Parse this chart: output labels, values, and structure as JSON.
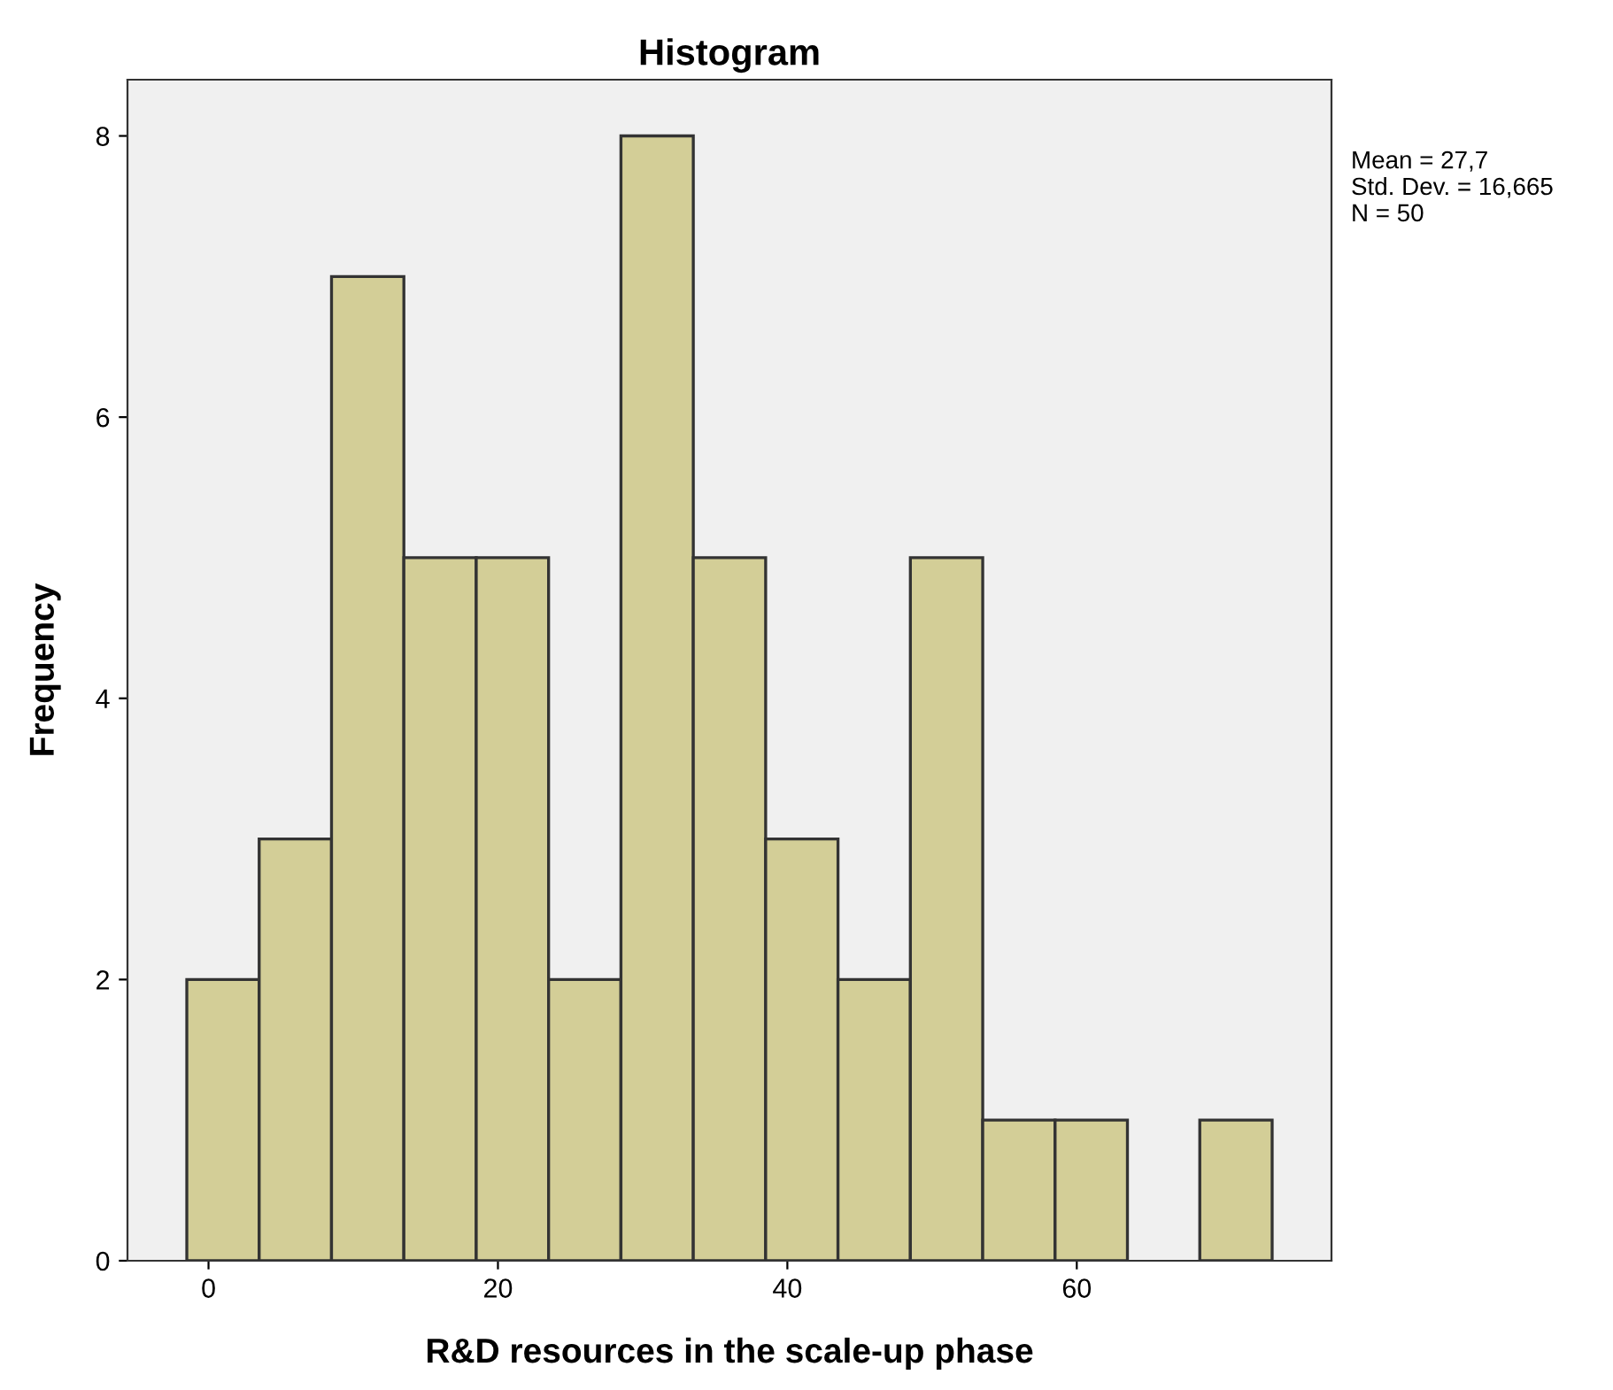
{
  "chart_data": {
    "type": "histogram",
    "title": "Histogram",
    "xlabel": "R&D resources in the scale-up phase",
    "ylabel": "Frequency",
    "bins": [
      -1.5,
      3.5,
      8.5,
      13.5,
      18.5,
      23.5,
      28.5,
      33.5,
      38.5,
      43.5,
      48.5,
      53.5,
      58.5,
      63.5,
      68.5,
      73.5
    ],
    "values": [
      2,
      3,
      7,
      5,
      5,
      2,
      8,
      5,
      3,
      2,
      5,
      1,
      1,
      0,
      1
    ],
    "color": "#d3ce97",
    "xlim": [
      -5.6,
      77.6
    ],
    "xticks": [
      0,
      20,
      40,
      60
    ],
    "ylim": [
      0,
      8.4
    ],
    "yticks": [
      0,
      2,
      4,
      6,
      8
    ],
    "grid": false,
    "annotations": [
      "Mean = 27,7\nStd. Dev. = 16,665\nN = 50"
    ]
  }
}
